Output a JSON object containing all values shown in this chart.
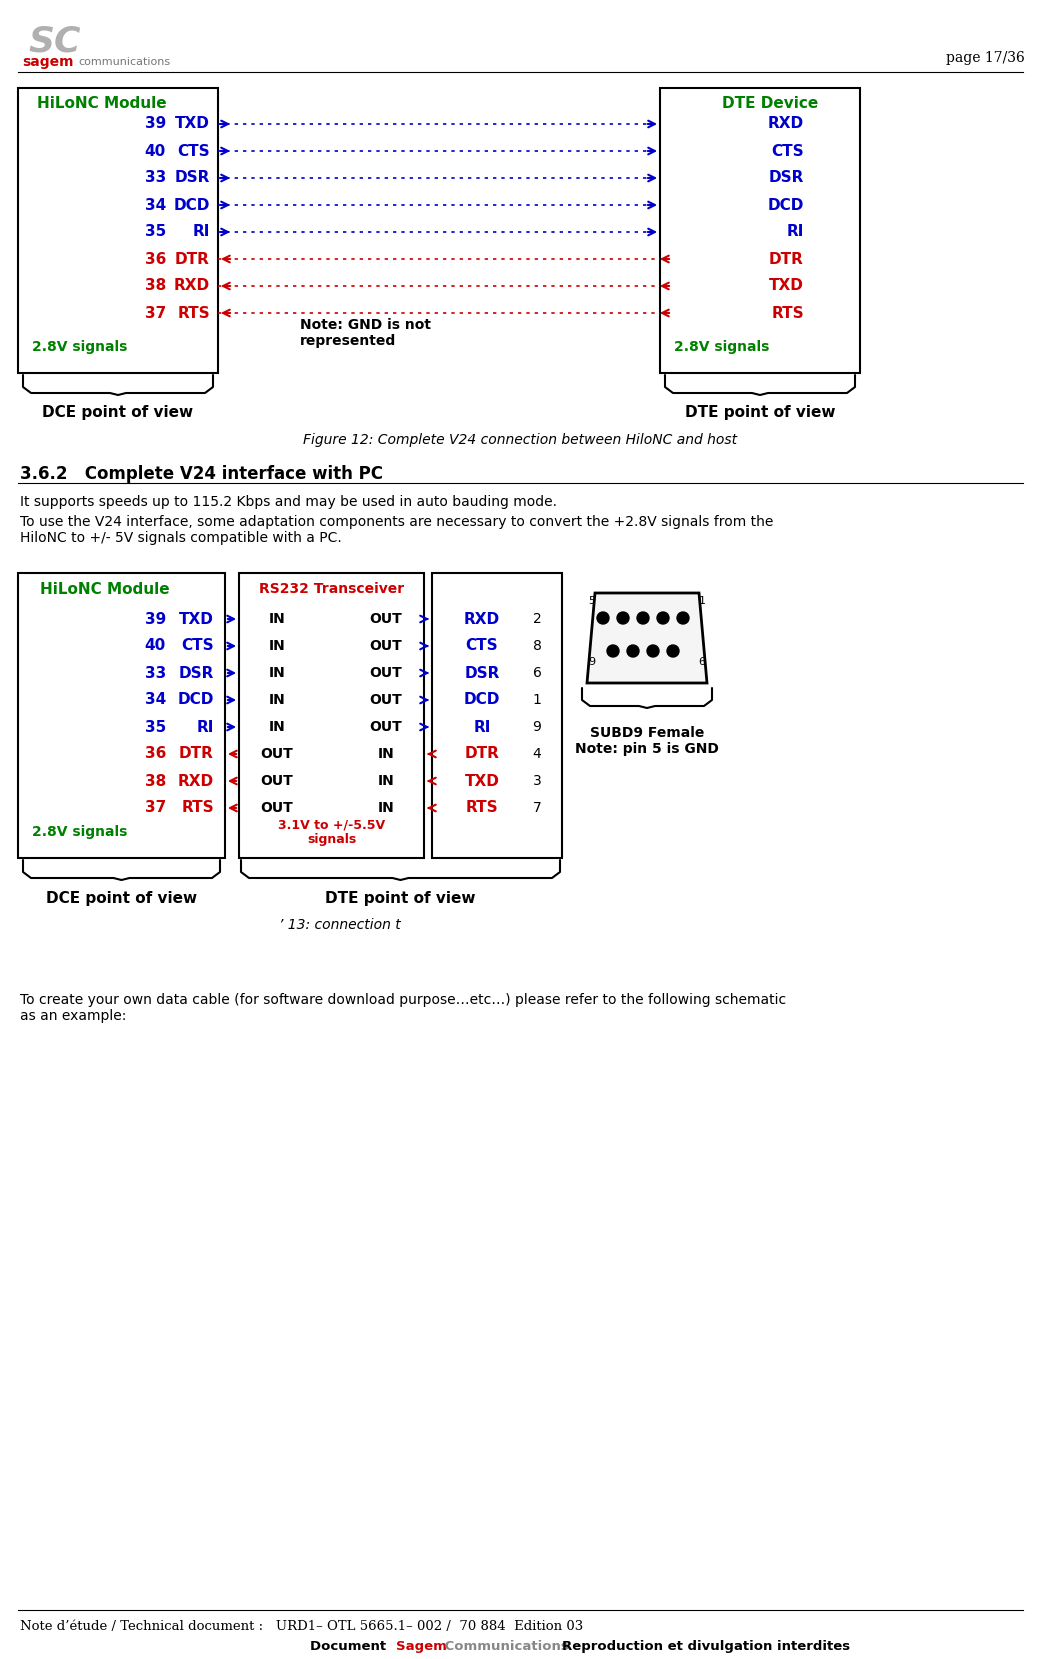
{
  "page_number": "page 17/36",
  "logo_text_sagem": "sagem",
  "logo_text_comm": "communications",
  "footer_text1": "Note d’étude / Technical document :   URD1– OTL 5665.1– 002 /  70 884  Edition 03",
  "green_color": "#008000",
  "red_color": "#CC0000",
  "blue_color": "#0000CC",
  "gray_color": "#888888",
  "fig12_title": "Figure 12: Complete V24 connection between HiloNC and host",
  "fig13_title": "’ 13: connection t",
  "section_title": "3.6.2   Complete V24 interface with PC",
  "para1": "It supports speeds up to 115.2 Kbps and may be used in auto bauding mode.",
  "para2": "To use the V24 interface, some adaptation components are necessary to convert the +2.8V signals from the\nHiloNC to +/- 5V signals compatible with a PC.",
  "para3": "To create your own data cable (for software download purpose…etc…) please refer to the following schematic\nas an example:",
  "fig1_hilo_title": "HiLoNC Module",
  "fig1_dte_title": "DTE Device",
  "fig1_signals_left": [
    "39  TXD",
    "40  CTS",
    "33  DSR",
    "34  DCD",
    "35   RI",
    "36  DTR",
    "38  RXD",
    "37  RTS"
  ],
  "fig1_signals_right": [
    "RXD",
    "CTS",
    "DSR",
    "DCD",
    "RI",
    "DTR",
    "TXD",
    "RTS"
  ],
  "fig1_note": "Note: GND is not\nrepresented",
  "fig1_2v8_left": "2.8V signals",
  "fig1_2v8_right": "2.8V signals",
  "fig1_dce_label": "DCE point of view",
  "fig1_dte_label": "DTE point of view",
  "fig2_hilo_title": "HiLoNC Module",
  "fig2_rs232_title": "RS232 Transceiver",
  "fig2_signals_left": [
    "39  TXD",
    "40  CTS",
    "33  DSR",
    "34  DCD",
    "35   RI",
    "36  DTR",
    "38  RXD",
    "37  RTS"
  ],
  "fig2_in_out_left": [
    "IN",
    "IN",
    "IN",
    "IN",
    "IN",
    "OUT",
    "OUT",
    "OUT"
  ],
  "fig2_in_out_right": [
    "OUT",
    "OUT",
    "OUT",
    "OUT",
    "OUT",
    "IN",
    "IN",
    "IN"
  ],
  "fig2_signals_mid": [
    "RXD",
    "CTS",
    "DSR",
    "DCD",
    "RI",
    "DTR",
    "TXD",
    "RTS"
  ],
  "fig2_pin_numbers": [
    "2",
    "8",
    "6",
    "1",
    "9",
    "4",
    "3",
    "7"
  ],
  "fig2_2v8_left": "2.8V signals",
  "fig2_volt_label": "3.1V to +/-5.5V\nsignals",
  "fig2_dce_label": "DCE point of view",
  "fig2_dte_label": "DTE point of view",
  "fig2_subd9_label": "SUBD9 Female\nNote: pin 5 is GND"
}
